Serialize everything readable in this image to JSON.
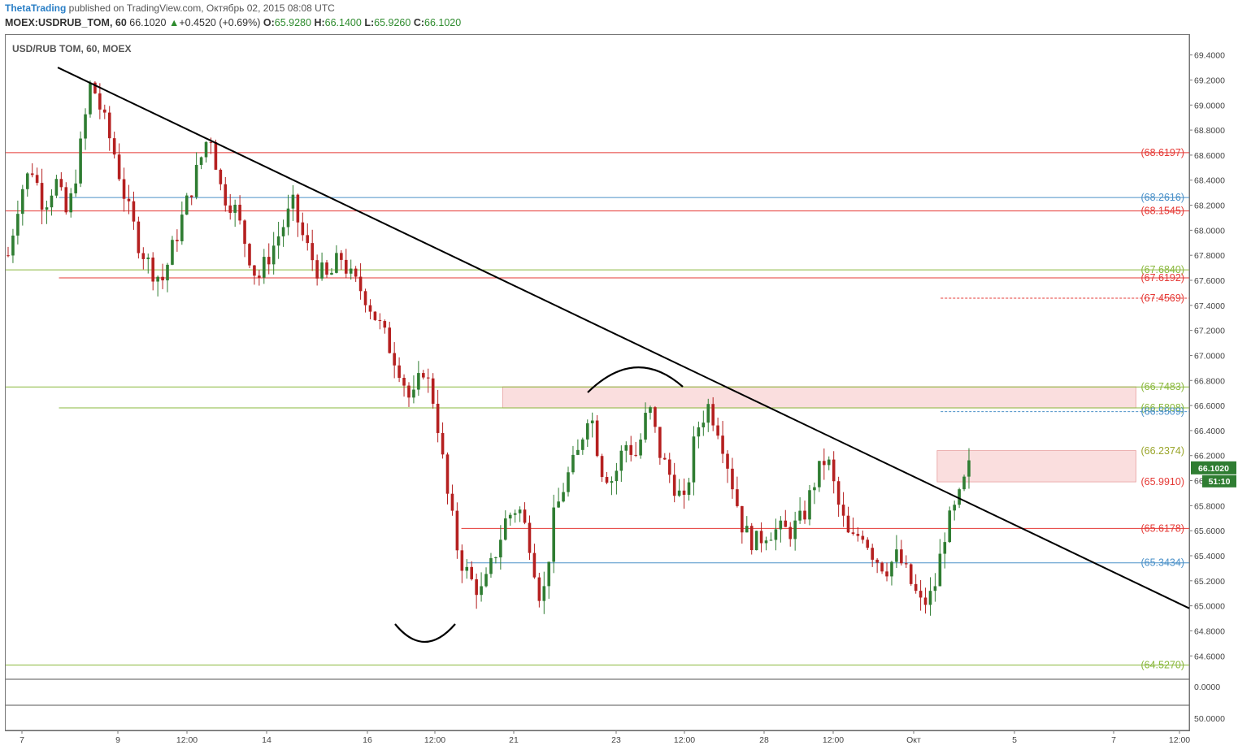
{
  "header": {
    "author": "ThetaTrading",
    "published": " published on TradingView.com, Октябрь 02, 2015 08:08 UTC",
    "symbol": "MOEX:USDRUB_TOM, 60",
    "last": "66.1020",
    "change": "+0.4520 (+0.69%)",
    "o_label": "O:",
    "o": "65.9280",
    "h_label": "H:",
    "h": "66.1400",
    "l_label": "L:",
    "l": "65.9260",
    "c_label": "C:",
    "c": "66.1020"
  },
  "chart_title": "USD/RUB TOM, 60, MOEX",
  "colors": {
    "up": "#2f7d32",
    "down": "#b52020",
    "resistance": "#e53935",
    "support_blue": "#4a90c8",
    "level_green": "#8ab83c",
    "zone": "#f6c3c3",
    "trendline": "#000000"
  },
  "chart_data": {
    "type": "candlestick",
    "title": "USD/RUB TOM, 60, MOEX",
    "y_range": [
      64.42,
      69.56
    ],
    "y_ticks": [
      "69.4000",
      "69.2000",
      "69.0000",
      "68.8000",
      "68.6000",
      "68.4000",
      "68.2000",
      "68.0000",
      "67.8000",
      "67.6000",
      "67.4000",
      "67.2000",
      "67.0000",
      "66.8000",
      "66.6000",
      "66.4000",
      "66.2000",
      "66.0000",
      "65.8000",
      "65.6000",
      "65.4000",
      "65.2000",
      "65.0000",
      "64.8000",
      "64.6000"
    ],
    "x_ticks": [
      "7",
      "9",
      "12:00",
      "14",
      "16",
      "12:00",
      "21",
      "23",
      "12:00",
      "28",
      "12:00",
      "Окт",
      "5",
      "7",
      "12:00"
    ],
    "volume_axis": [
      "0.0000"
    ],
    "indicator_axis": [
      "50.0000"
    ],
    "price_badge": "66.1020",
    "countdown_badge": "51:10",
    "price_series": [
      67.8,
      68.3,
      68.5,
      68.2,
      68.4,
      68.1,
      68.6,
      69.2,
      68.9,
      68.6,
      68.2,
      67.9,
      67.7,
      67.6,
      67.9,
      68.2,
      68.5,
      68.8,
      68.3,
      68.2,
      67.9,
      67.6,
      67.8,
      68.0,
      68.2,
      67.9,
      67.7,
      67.6,
      67.8,
      67.6,
      67.5,
      67.3,
      67.1,
      66.9,
      66.6,
      66.9,
      66.6,
      65.9,
      65.4,
      65.2,
      65.1,
      65.4,
      65.7,
      65.8,
      65.5,
      65.0,
      65.7,
      66.0,
      66.2,
      66.6,
      66.1,
      66.0,
      66.3,
      66.2,
      66.6,
      66.2,
      66.0,
      65.8,
      66.4,
      66.6,
      66.4,
      66.0,
      65.6,
      65.5,
      65.6,
      65.6,
      65.6,
      65.7,
      66.0,
      66.2,
      65.8,
      65.5,
      65.6,
      65.4,
      65.3,
      65.4,
      65.2,
      65.0,
      65.1,
      65.6,
      65.8,
      66.1
    ],
    "horizontal_levels": [
      {
        "label": "(68.6197)",
        "value": 68.6197,
        "color": "#e53935",
        "start_frac": 0.0
      },
      {
        "label": "(68.2616)",
        "value": 68.2616,
        "color": "#4a90c8",
        "start_frac": 0.045
      },
      {
        "label": "(68.1545)",
        "value": 68.1545,
        "color": "#e53935",
        "start_frac": 0.0
      },
      {
        "label": "(67.6840)",
        "value": 67.684,
        "color": "#8ab83c",
        "start_frac": 0.0
      },
      {
        "label": "(67.6192)",
        "value": 67.6192,
        "color": "#e53935",
        "start_frac": 0.045
      },
      {
        "label": "(67.4569)",
        "value": 67.4569,
        "color": "#e53935",
        "start_frac": 0.79,
        "dashed": true
      },
      {
        "label": "(66.7483)",
        "value": 66.7483,
        "color": "#8ab83c",
        "start_frac": 0.0
      },
      {
        "label": "(66.5808)",
        "value": 66.5808,
        "color": "#8ab83c",
        "start_frac": 0.045
      },
      {
        "label": "(66.5509)",
        "value": 66.5509,
        "color": "#4a90c8",
        "start_frac": 0.79,
        "dashed": true
      },
      {
        "label": "(66.2374)",
        "value": 66.2374,
        "color": "#9aa52a",
        "start_frac": 2.0
      },
      {
        "label": "(65.9910)",
        "value": 65.991,
        "color": "#e53935",
        "start_frac": 2.0
      },
      {
        "label": "(65.6178)",
        "value": 65.6178,
        "color": "#e53935",
        "start_frac": 0.385
      },
      {
        "label": "(65.3434)",
        "value": 65.3434,
        "color": "#4a90c8",
        "start_frac": 0.39
      },
      {
        "label": "(64.5270)",
        "value": 64.527,
        "color": "#8ab83c",
        "start_frac": 0.0
      }
    ],
    "zones": [
      {
        "from": 66.58,
        "to": 66.75,
        "start_frac": 0.42,
        "end_frac": 0.955
      },
      {
        "from": 65.99,
        "to": 66.24,
        "start_frac": 0.787,
        "end_frac": 0.955
      }
    ],
    "trendline": {
      "from": {
        "x_frac": 0.044,
        "y": 69.3
      },
      "to": {
        "x_frac": 1.0,
        "y": 64.98
      }
    }
  }
}
